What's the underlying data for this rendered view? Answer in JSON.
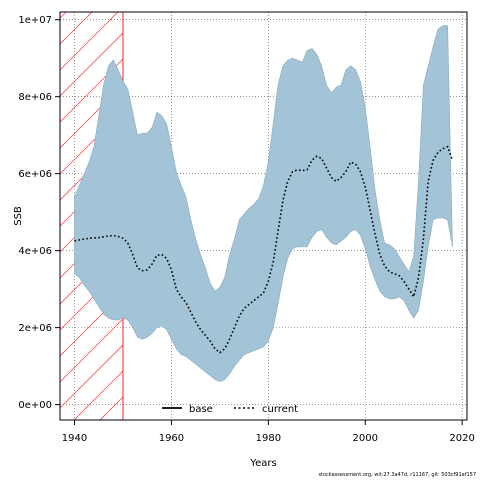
{
  "chart_data": {
    "type": "line",
    "xlabel": "Years",
    "ylabel": "SSB",
    "xlim": [
      1937,
      2021
    ],
    "ylim": [
      -400000,
      10200000
    ],
    "x_ticks": [
      1940,
      1960,
      1980,
      2000,
      2020
    ],
    "x_tick_labels": [
      "1940",
      "1960",
      "1980",
      "2000",
      "2020"
    ],
    "y_ticks": [
      0,
      2000000,
      4000000,
      6000000,
      8000000,
      10000000
    ],
    "y_tick_labels": [
      "0e+00",
      "2e+06",
      "4e+06",
      "6e+06",
      "8e+06",
      "1e+07"
    ],
    "grid": true,
    "legend_position": "bottom-center",
    "shaded_period": {
      "x_start": 1937,
      "x_end": 1950,
      "hatch_color": "#ff2020"
    },
    "band_color": "#a3c4d6",
    "series": [
      {
        "name": "base",
        "color": "#000000",
        "style": "solid",
        "values": []
      },
      {
        "name": "current",
        "color": "#000000",
        "style": "dotted",
        "x": [
          1940,
          1941,
          1942,
          1943,
          1944,
          1945,
          1946,
          1947,
          1948,
          1949,
          1950,
          1951,
          1952,
          1953,
          1954,
          1955,
          1956,
          1957,
          1958,
          1959,
          1960,
          1961,
          1962,
          1963,
          1964,
          1965,
          1966,
          1967,
          1968,
          1969,
          1970,
          1971,
          1972,
          1973,
          1974,
          1975,
          1976,
          1977,
          1978,
          1979,
          1980,
          1981,
          1982,
          1983,
          1984,
          1985,
          1986,
          1987,
          1988,
          1989,
          1990,
          1991,
          1992,
          1993,
          1994,
          1995,
          1996,
          1997,
          1998,
          1999,
          2000,
          2001,
          2002,
          2003,
          2004,
          2005,
          2006,
          2007,
          2008,
          2009,
          2010,
          2011,
          2012,
          2013,
          2014,
          2015,
          2016,
          2017,
          2018
        ],
        "values": [
          4250000,
          4280000,
          4300000,
          4320000,
          4330000,
          4340000,
          4360000,
          4380000,
          4390000,
          4370000,
          4320000,
          4200000,
          3900000,
          3550000,
          3480000,
          3500000,
          3650000,
          3880000,
          3900000,
          3800000,
          3500000,
          3000000,
          2800000,
          2650000,
          2400000,
          2150000,
          1950000,
          1800000,
          1650000,
          1450000,
          1350000,
          1450000,
          1700000,
          2000000,
          2300000,
          2500000,
          2600000,
          2700000,
          2800000,
          2900000,
          3200000,
          3700000,
          4500000,
          5300000,
          5800000,
          6050000,
          6100000,
          6080000,
          6100000,
          6350000,
          6450000,
          6400000,
          6150000,
          5900000,
          5800000,
          5900000,
          6050000,
          6300000,
          6250000,
          6050000,
          5650000,
          5050000,
          4450000,
          3900000,
          3600000,
          3450000,
          3400000,
          3350000,
          3200000,
          3000000,
          2800000,
          3300000,
          4300000,
          5800000,
          6350000,
          6550000,
          6650000,
          6700000,
          6350000
        ]
      }
    ],
    "band": {
      "x": [
        1940,
        1941,
        1942,
        1943,
        1944,
        1945,
        1946,
        1947,
        1948,
        1949,
        1950,
        1951,
        1952,
        1953,
        1954,
        1955,
        1956,
        1957,
        1958,
        1959,
        1960,
        1961,
        1962,
        1963,
        1964,
        1965,
        1966,
        1967,
        1968,
        1969,
        1970,
        1971,
        1972,
        1973,
        1974,
        1975,
        1976,
        1977,
        1978,
        1979,
        1980,
        1981,
        1982,
        1983,
        1984,
        1985,
        1986,
        1987,
        1988,
        1989,
        1990,
        1991,
        1992,
        1993,
        1994,
        1995,
        1996,
        1997,
        1998,
        1999,
        2000,
        2001,
        2002,
        2003,
        2004,
        2005,
        2006,
        2007,
        2008,
        2009,
        2010,
        2011,
        2012,
        2013,
        2014,
        2015,
        2016,
        2017,
        2018
      ],
      "upper": [
        5400000,
        5700000,
        6000000,
        6300000,
        6700000,
        7500000,
        8300000,
        8800000,
        8950000,
        8700000,
        8400000,
        8200000,
        7600000,
        7000000,
        7050000,
        7050000,
        7200000,
        7600000,
        7500000,
        7300000,
        6700000,
        6050000,
        5700000,
        5400000,
        4800000,
        4300000,
        3900000,
        3550000,
        3150000,
        2950000,
        3050000,
        3300000,
        3900000,
        4300000,
        4800000,
        4950000,
        5100000,
        5200000,
        5350000,
        5700000,
        6300000,
        7300000,
        8300000,
        8800000,
        8950000,
        9000000,
        8950000,
        8900000,
        9200000,
        9250000,
        9100000,
        8800000,
        8300000,
        8100000,
        8250000,
        8300000,
        8700000,
        8800000,
        8700000,
        8400000,
        7700000,
        6700000,
        5600000,
        4800000,
        4200000,
        4150000,
        4050000,
        3850000,
        3650000,
        3450000,
        3850000,
        5800000,
        8300000,
        8800000,
        9300000,
        9750000,
        9850000,
        9850000,
        4100000
      ],
      "lower": [
        3400000,
        3300000,
        3100000,
        2950000,
        2750000,
        2550000,
        2350000,
        2250000,
        2200000,
        2200000,
        2250000,
        2200000,
        2000000,
        1750000,
        1700000,
        1750000,
        1850000,
        2000000,
        2050000,
        1950000,
        1700000,
        1450000,
        1300000,
        1250000,
        1150000,
        1050000,
        950000,
        850000,
        750000,
        650000,
        600000,
        650000,
        800000,
        1000000,
        1150000,
        1300000,
        1350000,
        1400000,
        1450000,
        1500000,
        1650000,
        2000000,
        2600000,
        3300000,
        3800000,
        4050000,
        4100000,
        4100000,
        4100000,
        4350000,
        4500000,
        4550000,
        4350000,
        4200000,
        4150000,
        4250000,
        4350000,
        4500000,
        4550000,
        4400000,
        4050000,
        3600000,
        3250000,
        2950000,
        2800000,
        2750000,
        2750000,
        2800000,
        2700000,
        2450000,
        2250000,
        2450000,
        3200000,
        4100000,
        4800000,
        4850000,
        4850000,
        4800000,
        4100000
      ]
    }
  },
  "legend": {
    "items": [
      {
        "label": "base",
        "style": "solid"
      },
      {
        "label": "current",
        "style": "dotted"
      }
    ]
  },
  "footer": {
    "text": "stockassessment.org, wit:27.3a47d, r11167, git: 503cf91af157"
  }
}
